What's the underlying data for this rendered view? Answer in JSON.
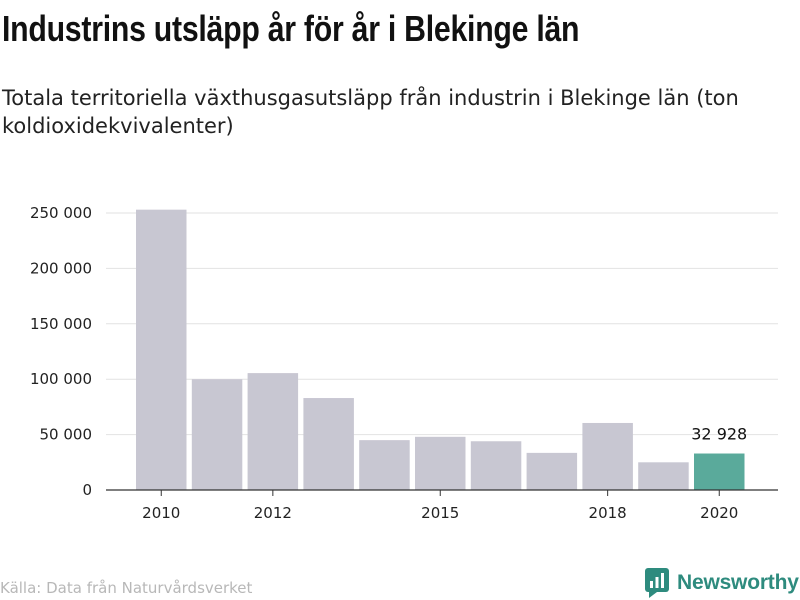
{
  "header": {
    "title": "Industrins utsläpp år för år i Blekinge län",
    "subtitle": "Totala territoriella växthusgasutsläpp från industrin i Blekinge län (ton koldioxidekvivalenter)"
  },
  "footer": {
    "source": "Källa: Data från Naturvårdsverket",
    "brand": "Newsworthy",
    "brand_icon": "newsworthy-logo-icon",
    "brand_color": "#2e8b7e"
  },
  "chart_data": {
    "type": "bar",
    "categories": [
      "2010",
      "2011",
      "2012",
      "2013",
      "2014",
      "2015",
      "2016",
      "2017",
      "2018",
      "2019",
      "2020"
    ],
    "values": [
      253000,
      100000,
      105500,
      83000,
      45000,
      48000,
      44000,
      33500,
      60500,
      25000,
      32928
    ],
    "x_tick_labels": [
      "2010",
      "2012",
      "2015",
      "2018",
      "2020"
    ],
    "ylim": [
      0,
      250000
    ],
    "yticks": [
      0,
      50000,
      100000,
      150000,
      200000,
      250000
    ],
    "ytick_labels": [
      "0",
      "50 000",
      "100 000",
      "150 000",
      "200 000",
      "250 000"
    ],
    "grid": true,
    "bar_color": "#c8c7d2",
    "highlight_color": "#5aaa9b",
    "highlight_index": 10,
    "highlight_label": "32 928",
    "xlabel": "",
    "ylabel": ""
  }
}
